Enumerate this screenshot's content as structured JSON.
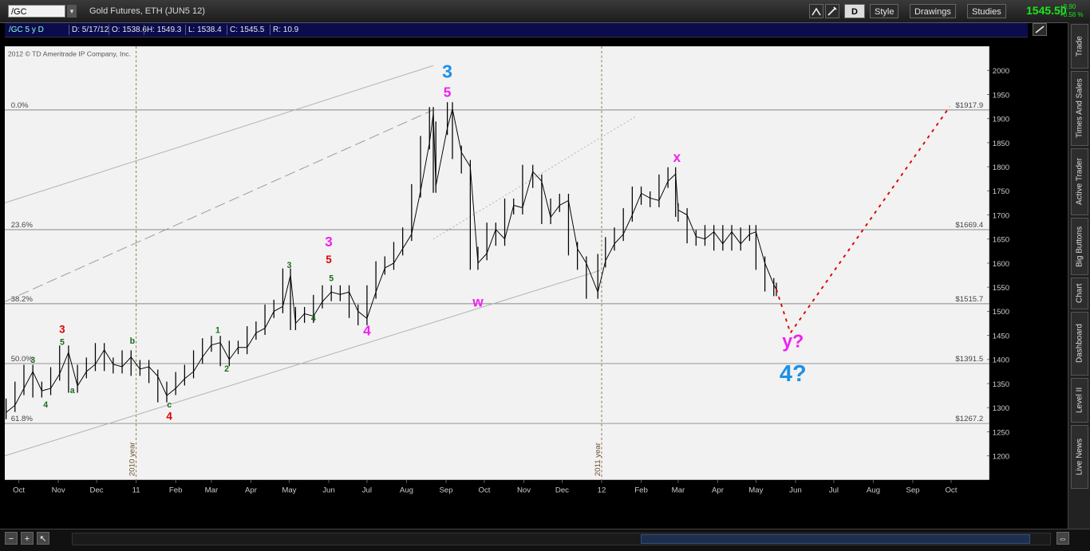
{
  "toolbar": {
    "symbol": "/GC",
    "description": "Gold Futures, ETH (JUN5 12)",
    "period_button": "D",
    "style_label": "Style",
    "drawings_label": "Drawings",
    "studies_label": "Studies",
    "last_price": "1545.50",
    "net_change": "+8.90",
    "pct_change": "+0.58 %"
  },
  "chart_header": {
    "symbol_period": "/GC 5 y D",
    "date": "D: 5/17/12",
    "open": "O: 1538.6",
    "high": "H: 1549.3",
    "low": "L: 1538.4",
    "close": "C: 1545.5",
    "range": "R: 10.9"
  },
  "right_rail": {
    "tabs": [
      "Trade",
      "Times And Sales",
      "Active Trader",
      "Big Buttons",
      "Chart",
      "Dashboard",
      "Level II",
      "Live News"
    ]
  },
  "colors": {
    "background": "#f2f2f2",
    "candle": "#000000",
    "fib_line": "#888888",
    "channel": "#b0b0b0",
    "projection": "#e00000",
    "wave_blue": "#1e90e8",
    "wave_magenta": "#ee22ee",
    "wave_red": "#e00000",
    "wave_green": "#1a6e1a"
  },
  "chart_data": {
    "type": "line",
    "copyright": "2012 © TD Ameritrade IP Company, Inc.",
    "price_range": [
      1150,
      2050
    ],
    "y_ticks": [
      1200,
      1250,
      1300,
      1350,
      1400,
      1450,
      1500,
      1550,
      1600,
      1650,
      1700,
      1750,
      1800,
      1850,
      1900,
      1950,
      2000
    ],
    "x_range": [
      "2010-09-20",
      "2012-10-31"
    ],
    "x_ticks": [
      {
        "date": "2010-10-01",
        "label": "Oct"
      },
      {
        "date": "2010-11-01",
        "label": "Nov"
      },
      {
        "date": "2010-12-01",
        "label": "Dec"
      },
      {
        "date": "2011-01-01",
        "label": "11"
      },
      {
        "date": "2011-02-01",
        "label": "Feb"
      },
      {
        "date": "2011-03-01",
        "label": "Mar"
      },
      {
        "date": "2011-04-01",
        "label": "Apr"
      },
      {
        "date": "2011-05-01",
        "label": "May"
      },
      {
        "date": "2011-06-01",
        "label": "Jun"
      },
      {
        "date": "2011-07-01",
        "label": "Jul"
      },
      {
        "date": "2011-08-01",
        "label": "Aug"
      },
      {
        "date": "2011-09-01",
        "label": "Sep"
      },
      {
        "date": "2011-10-01",
        "label": "Oct"
      },
      {
        "date": "2011-11-01",
        "label": "Nov"
      },
      {
        "date": "2011-12-01",
        "label": "Dec"
      },
      {
        "date": "2012-01-01",
        "label": "12"
      },
      {
        "date": "2012-02-01",
        "label": "Feb"
      },
      {
        "date": "2012-03-01",
        "label": "Mar"
      },
      {
        "date": "2012-04-01",
        "label": "Apr"
      },
      {
        "date": "2012-05-01",
        "label": "May"
      },
      {
        "date": "2012-06-01",
        "label": "Jun"
      },
      {
        "date": "2012-07-01",
        "label": "Jul"
      },
      {
        "date": "2012-08-01",
        "label": "Aug"
      },
      {
        "date": "2012-09-01",
        "label": "Sep"
      },
      {
        "date": "2012-10-01",
        "label": "Oct"
      }
    ],
    "year_markers": [
      {
        "date": "2011-01-01",
        "label": "2010 year"
      },
      {
        "date": "2012-01-01",
        "label": "2011 year"
      }
    ],
    "fib_levels": [
      {
        "pct": "0.0%",
        "price": 1917.9,
        "label": "$1917.9"
      },
      {
        "pct": "23.6%",
        "price": 1669.4,
        "label": "$1669.4"
      },
      {
        "pct": "38.2%",
        "price": 1515.7,
        "label": "$1515.7"
      },
      {
        "pct": "50.0%",
        "price": 1391.5,
        "label": "$1391.5"
      },
      {
        "pct": "61.8%",
        "price": 1267.2,
        "label": "$1267.2"
      }
    ],
    "series": [
      {
        "values": [
          {
            "date": "2010-09-21",
            "price": 1290
          },
          {
            "date": "2010-09-28",
            "price": 1305
          },
          {
            "date": "2010-10-05",
            "price": 1340
          },
          {
            "date": "2010-10-12",
            "price": 1375
          },
          {
            "date": "2010-10-19",
            "price": 1335
          },
          {
            "date": "2010-10-26",
            "price": 1340
          },
          {
            "date": "2010-11-02",
            "price": 1370
          },
          {
            "date": "2010-11-09",
            "price": 1415
          },
          {
            "date": "2010-11-16",
            "price": 1345
          },
          {
            "date": "2010-11-23",
            "price": 1375
          },
          {
            "date": "2010-11-30",
            "price": 1390
          },
          {
            "date": "2010-12-07",
            "price": 1420
          },
          {
            "date": "2010-12-14",
            "price": 1390
          },
          {
            "date": "2010-12-21",
            "price": 1385
          },
          {
            "date": "2010-12-28",
            "price": 1405
          },
          {
            "date": "2011-01-04",
            "price": 1380
          },
          {
            "date": "2011-01-11",
            "price": 1385
          },
          {
            "date": "2011-01-18",
            "price": 1365
          },
          {
            "date": "2011-01-25",
            "price": 1325
          },
          {
            "date": "2011-02-01",
            "price": 1340
          },
          {
            "date": "2011-02-08",
            "price": 1360
          },
          {
            "date": "2011-02-15",
            "price": 1375
          },
          {
            "date": "2011-02-22",
            "price": 1405
          },
          {
            "date": "2011-03-01",
            "price": 1430
          },
          {
            "date": "2011-03-08",
            "price": 1435
          },
          {
            "date": "2011-03-15",
            "price": 1400
          },
          {
            "date": "2011-03-22",
            "price": 1425
          },
          {
            "date": "2011-03-29",
            "price": 1425
          },
          {
            "date": "2011-04-05",
            "price": 1455
          },
          {
            "date": "2011-04-12",
            "price": 1465
          },
          {
            "date": "2011-04-19",
            "price": 1500
          },
          {
            "date": "2011-04-26",
            "price": 1510
          },
          {
            "date": "2011-05-02",
            "price": 1575
          },
          {
            "date": "2011-05-06",
            "price": 1475
          },
          {
            "date": "2011-05-13",
            "price": 1495
          },
          {
            "date": "2011-05-20",
            "price": 1490
          },
          {
            "date": "2011-05-27",
            "price": 1520
          },
          {
            "date": "2011-06-03",
            "price": 1540
          },
          {
            "date": "2011-06-10",
            "price": 1535
          },
          {
            "date": "2011-06-17",
            "price": 1540
          },
          {
            "date": "2011-06-24",
            "price": 1500
          },
          {
            "date": "2011-07-01",
            "price": 1485
          },
          {
            "date": "2011-07-08",
            "price": 1540
          },
          {
            "date": "2011-07-15",
            "price": 1590
          },
          {
            "date": "2011-07-22",
            "price": 1600
          },
          {
            "date": "2011-07-29",
            "price": 1630
          },
          {
            "date": "2011-08-05",
            "price": 1660
          },
          {
            "date": "2011-08-12",
            "price": 1750
          },
          {
            "date": "2011-08-19",
            "price": 1850
          },
          {
            "date": "2011-08-22",
            "price": 1910
          },
          {
            "date": "2011-08-24",
            "price": 1760
          },
          {
            "date": "2011-09-02",
            "price": 1880
          },
          {
            "date": "2011-09-06",
            "price": 1920
          },
          {
            "date": "2011-09-13",
            "price": 1830
          },
          {
            "date": "2011-09-20",
            "price": 1800
          },
          {
            "date": "2011-09-26",
            "price": 1600
          },
          {
            "date": "2011-10-03",
            "price": 1620
          },
          {
            "date": "2011-10-10",
            "price": 1670
          },
          {
            "date": "2011-10-17",
            "price": 1650
          },
          {
            "date": "2011-10-24",
            "price": 1720
          },
          {
            "date": "2011-10-31",
            "price": 1715
          },
          {
            "date": "2011-11-08",
            "price": 1790
          },
          {
            "date": "2011-11-15",
            "price": 1770
          },
          {
            "date": "2011-11-22",
            "price": 1695
          },
          {
            "date": "2011-11-29",
            "price": 1720
          },
          {
            "date": "2011-12-06",
            "price": 1730
          },
          {
            "date": "2011-12-13",
            "price": 1630
          },
          {
            "date": "2011-12-20",
            "price": 1600
          },
          {
            "date": "2011-12-29",
            "price": 1540
          },
          {
            "date": "2012-01-04",
            "price": 1605
          },
          {
            "date": "2012-01-11",
            "price": 1640
          },
          {
            "date": "2012-01-18",
            "price": 1660
          },
          {
            "date": "2012-01-25",
            "price": 1700
          },
          {
            "date": "2012-02-01",
            "price": 1745
          },
          {
            "date": "2012-02-08",
            "price": 1735
          },
          {
            "date": "2012-02-15",
            "price": 1730
          },
          {
            "date": "2012-02-22",
            "price": 1770
          },
          {
            "date": "2012-02-28",
            "price": 1785
          },
          {
            "date": "2012-03-01",
            "price": 1710
          },
          {
            "date": "2012-03-08",
            "price": 1700
          },
          {
            "date": "2012-03-15",
            "price": 1655
          },
          {
            "date": "2012-03-22",
            "price": 1650
          },
          {
            "date": "2012-03-29",
            "price": 1665
          },
          {
            "date": "2012-04-05",
            "price": 1640
          },
          {
            "date": "2012-04-12",
            "price": 1665
          },
          {
            "date": "2012-04-19",
            "price": 1640
          },
          {
            "date": "2012-04-26",
            "price": 1660
          },
          {
            "date": "2012-05-01",
            "price": 1665
          },
          {
            "date": "2012-05-08",
            "price": 1600
          },
          {
            "date": "2012-05-15",
            "price": 1555
          },
          {
            "date": "2012-05-17",
            "price": 1545.5
          }
        ]
      }
    ],
    "projection": [
      {
        "date": "2012-05-17",
        "price": 1545.5
      },
      {
        "date": "2012-05-28",
        "price": 1455
      },
      {
        "date": "2012-09-30",
        "price": 1925
      }
    ],
    "channel_lines": [
      {
        "from": {
          "date": "2010-09-20",
          "price": 1200
        },
        "to": {
          "date": "2011-12-31",
          "price": 1585
        },
        "style": "solid"
      },
      {
        "from": {
          "date": "2010-09-20",
          "price": 1725
        },
        "to": {
          "date": "2011-08-22",
          "price": 2010
        },
        "style": "solid"
      },
      {
        "from": {
          "date": "2010-09-20",
          "price": 1520
        },
        "to": {
          "date": "2011-08-22",
          "price": 1918
        },
        "style": "dashed"
      },
      {
        "from": {
          "date": "2011-08-22",
          "price": 1650
        },
        "to": {
          "date": "2012-01-28",
          "price": 1905
        },
        "style": "dotted"
      }
    ],
    "wave_labels": [
      {
        "text": "3",
        "color": "blue",
        "size": "lg",
        "date": "2011-09-02",
        "price": 1985
      },
      {
        "text": "5",
        "color": "magenta",
        "size": "md",
        "date": "2011-09-02",
        "price": 1945
      },
      {
        "text": "w",
        "color": "magenta",
        "size": "md",
        "date": "2011-09-26",
        "price": 1510
      },
      {
        "text": "x",
        "color": "magenta",
        "size": "md",
        "date": "2012-02-29",
        "price": 1810
      },
      {
        "text": "y?",
        "color": "magenta",
        "size": "lg",
        "date": "2012-05-30",
        "price": 1425
      },
      {
        "text": "4?",
        "color": "blue",
        "size": "xl",
        "date": "2012-05-30",
        "price": 1355
      },
      {
        "text": "3",
        "color": "magenta",
        "size": "md",
        "date": "2011-06-01",
        "price": 1635
      },
      {
        "text": "5",
        "color": "red",
        "size": "sm",
        "date": "2011-06-01",
        "price": 1600
      },
      {
        "text": "5",
        "color": "green",
        "size": "xs",
        "date": "2011-06-03",
        "price": 1563
      },
      {
        "text": "4",
        "color": "magenta",
        "size": "md",
        "date": "2011-07-01",
        "price": 1450
      },
      {
        "text": "4",
        "color": "green",
        "size": "xs",
        "date": "2011-05-20",
        "price": 1480
      },
      {
        "text": "3",
        "color": "green",
        "size": "xs",
        "date": "2011-05-01",
        "price": 1590
      },
      {
        "text": "1",
        "color": "green",
        "size": "xs",
        "date": "2011-03-06",
        "price": 1455
      },
      {
        "text": "2",
        "color": "green",
        "size": "xs",
        "date": "2011-03-13",
        "price": 1375
      },
      {
        "text": "b",
        "color": "green",
        "size": "xs",
        "date": "2010-12-29",
        "price": 1433
      },
      {
        "text": "c",
        "color": "green",
        "size": "xs",
        "date": "2011-01-27",
        "price": 1300
      },
      {
        "text": "4",
        "color": "red",
        "size": "sm",
        "date": "2011-01-27",
        "price": 1275
      },
      {
        "text": "3",
        "color": "red",
        "size": "sm",
        "date": "2010-11-04",
        "price": 1455
      },
      {
        "text": "5",
        "color": "green",
        "size": "xs",
        "date": "2010-11-04",
        "price": 1430
      },
      {
        "text": "a",
        "color": "green",
        "size": "xs",
        "date": "2010-11-12",
        "price": 1330
      },
      {
        "text": "3",
        "color": "green",
        "size": "xs",
        "date": "2010-10-12",
        "price": 1393
      },
      {
        "text": "4",
        "color": "green",
        "size": "xs",
        "date": "2010-10-22",
        "price": 1300
      }
    ]
  }
}
